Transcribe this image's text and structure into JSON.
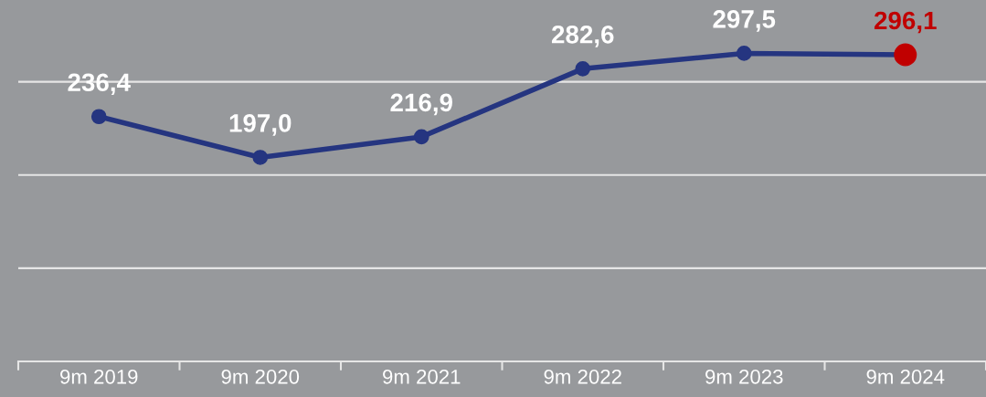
{
  "chart_data": {
    "type": "line",
    "categories": [
      "9m 2019",
      "9m 2020",
      "9m 2021",
      "9m 2022",
      "9m 2023",
      "9m 2024"
    ],
    "series": [
      {
        "color": "#253580",
        "values": [
          236.4,
          197.0,
          216.9,
          282.6,
          297.5,
          296.1
        ],
        "colors": [
          "#253580",
          "#253580",
          "#253580",
          "#253580",
          "#253580",
          "#c00000"
        ],
        "value_labels": [
          "236,4",
          "197,0",
          "216,9",
          "282,6",
          "297,5",
          "296,1"
        ]
      }
    ],
    "ylim": [
      0,
      349
    ],
    "yticks": [
      {
        "value": 90,
        "label": null
      },
      {
        "value": 180,
        "label": null
      },
      {
        "value": 270,
        "label": null
      }
    ],
    "tick_labels": "x",
    "grid": "y",
    "marker": "circle",
    "line_style": "solid"
  }
}
